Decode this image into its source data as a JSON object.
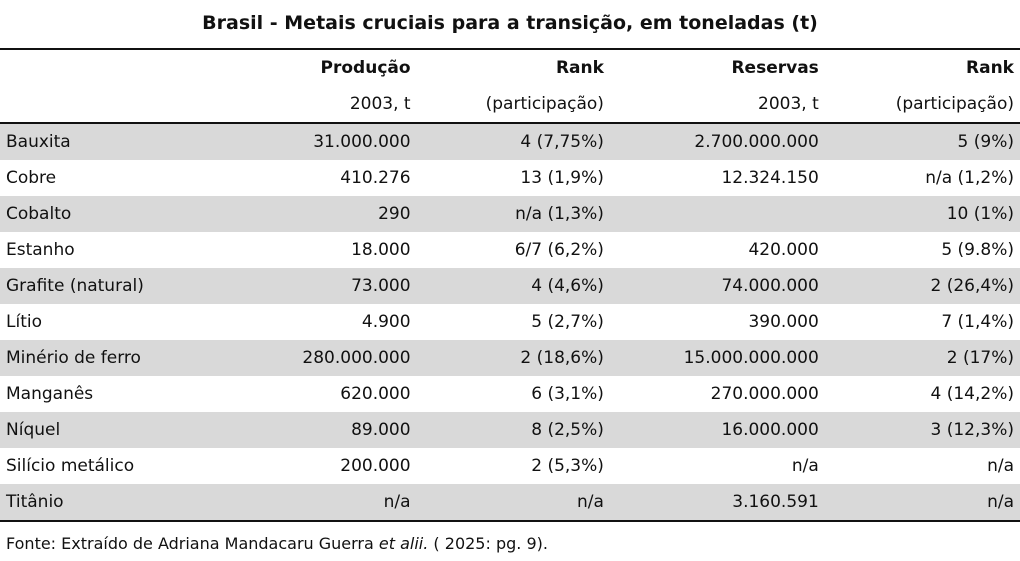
{
  "title": "Brasil - Metais cruciais para a transição, em toneladas (t)",
  "header": {
    "row1": [
      "",
      "Produção",
      "Rank",
      "Reservas",
      "Rank"
    ],
    "row2": [
      "",
      "2003, t",
      "(participação)",
      "2003, t",
      "(participação)"
    ]
  },
  "rows": [
    [
      "Bauxita",
      "31.000.000",
      "4 (7,75%)",
      "2.700.000.000",
      "5 (9%)"
    ],
    [
      "Cobre",
      "410.276",
      "13 (1,9%)",
      "12.324.150",
      "n/a (1,2%)"
    ],
    [
      "Cobalto",
      "290",
      "n/a (1,3%)",
      "",
      "10 (1%)"
    ],
    [
      "Estanho",
      "18.000",
      "6/7 (6,2%)",
      "420.000",
      "5 (9.8%)"
    ],
    [
      "Grafite (natural)",
      "73.000",
      "4 (4,6%)",
      "74.000.000",
      "2 (26,4%)"
    ],
    [
      "Lítio",
      "4.900",
      "5 (2,7%)",
      "390.000",
      "7 (1,4%)"
    ],
    [
      "Minério de ferro",
      "280.000.000",
      "2 (18,6%)",
      "15.000.000.000",
      "2 (17%)"
    ],
    [
      "Manganês",
      "620.000",
      "6 (3,1%)",
      "270.000.000",
      "4 (14,2%)"
    ],
    [
      "Níquel",
      "89.000",
      "8 (2,5%)",
      "16.000.000",
      "3 (12,3%)"
    ],
    [
      "Silício metálico",
      "200.000",
      "2 (5,3%)",
      "n/a",
      "n/a"
    ],
    [
      "Titânio",
      "n/a",
      "n/a",
      "3.160.591",
      "n/a"
    ]
  ],
  "source": {
    "prefix": "Fonte: Extraído de Adriana Mandacaru Guerra ",
    "italic": "et alii.",
    "suffix": "  ( 2025: pg. 9)."
  }
}
